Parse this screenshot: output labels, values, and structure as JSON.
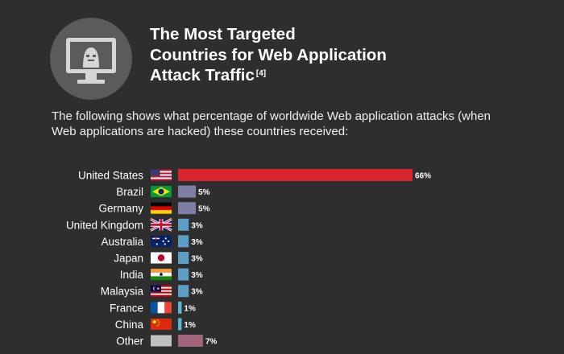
{
  "header": {
    "icon": "hacker-monitor-icon",
    "title_lines": [
      "The Most Targeted",
      "Countries for Web Application",
      "Attack Traffic"
    ],
    "title_ref": "[4]",
    "description": "The following shows what percentage of worldwide Web application attacks (when Web applications are hacked) these countries received:"
  },
  "chart_data": {
    "type": "bar",
    "orientation": "horizontal",
    "categories": [
      "United States",
      "Brazil",
      "Germany",
      "United Kingdom",
      "Australia",
      "Japan",
      "India",
      "Malaysia",
      "France",
      "China",
      "Other"
    ],
    "values": [
      66,
      5,
      5,
      3,
      3,
      3,
      3,
      3,
      1,
      1,
      7
    ],
    "value_labels": [
      "66%",
      "5%",
      "5%",
      "3%",
      "3%",
      "3%",
      "3%",
      "3%",
      "1%",
      "1%",
      "7%"
    ],
    "flags": [
      "flag-usa",
      "flag-brazil",
      "flag-germany",
      "flag-uk",
      "flag-australia",
      "flag-japan",
      "flag-india",
      "flag-malaysia",
      "flag-france",
      "flag-china",
      "flag-other"
    ],
    "colors": {
      "United States": "#d9232d",
      "Brazil": "#7f7fa6",
      "Germany": "#7f7fa6",
      "United Kingdom": "#5d9fc4",
      "Australia": "#5d9fc4",
      "Japan": "#5d9fc4",
      "India": "#5d9fc4",
      "Malaysia": "#5d9fc4",
      "France": "#5fb7d6",
      "China": "#5fb7d6",
      "Other": "#a1647c"
    },
    "title": "",
    "xlabel": "",
    "ylabel": "",
    "xlim": [
      0,
      66
    ],
    "grid": false,
    "legend": "none"
  }
}
